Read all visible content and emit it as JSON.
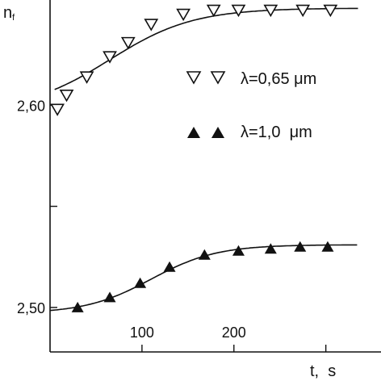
{
  "chart_data": {
    "type": "scatter",
    "x_tick_labels": [
      "100",
      "200"
    ],
    "x_ticks": [
      100,
      200,
      300
    ],
    "y_tick_labels": [
      "2,60",
      "2,50"
    ],
    "y_ticks": [
      2.5,
      2.55,
      2.6
    ],
    "xlabel": "t,  s",
    "ylabel_base": "n",
    "ylabel_sub": "f",
    "xlim": [
      0,
      360
    ],
    "ylim": [
      2.478,
      2.652
    ],
    "grid": false,
    "legend_position": "right-middle",
    "series": [
      {
        "name": "λ=0,65 μm",
        "marker": "triangle-down-open",
        "color": "#111111",
        "x": [
          8,
          18,
          40,
          65,
          85,
          110,
          145,
          178,
          205,
          240,
          275,
          305
        ],
        "y": [
          2.598,
          2.605,
          2.614,
          2.624,
          2.631,
          2.64,
          2.645,
          2.647,
          2.647,
          2.647,
          2.647,
          2.647
        ]
      },
      {
        "name": "λ=1,0  μm",
        "marker": "triangle-up-filled",
        "color": "#111111",
        "x": [
          30,
          65,
          98,
          130,
          168,
          205,
          240,
          272,
          302
        ],
        "y": [
          2.5,
          2.505,
          2.512,
          2.52,
          2.526,
          2.528,
          2.529,
          2.53,
          2.53
        ]
      }
    ],
    "fit_curves": [
      {
        "series": 0,
        "plateau": 2.648,
        "start": 2.597,
        "k": 0.022,
        "x0": 65
      },
      {
        "series": 1,
        "plateau": 2.531,
        "start": 2.497,
        "k": 0.028,
        "x0": 110
      }
    ]
  }
}
